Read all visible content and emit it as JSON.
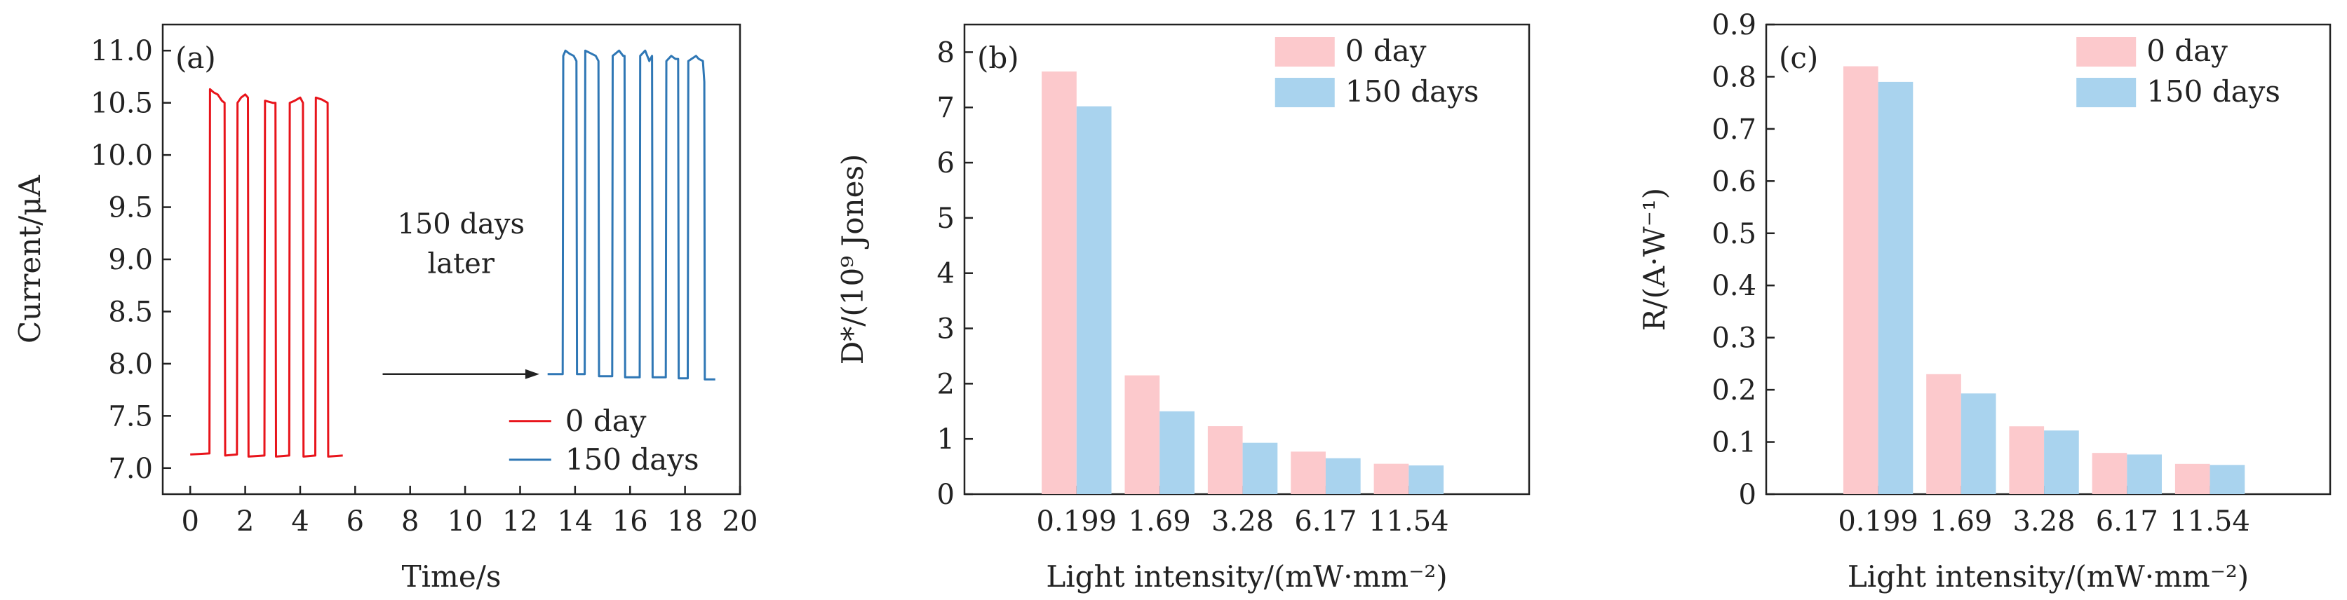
{
  "chart_data": [
    {
      "panel_label": "(a)",
      "type": "line",
      "xlabel": "Time/s",
      "ylabel": "Current/μA",
      "xlim": [
        -1,
        20
      ],
      "ylim": [
        6.75,
        11.25
      ],
      "xticks": [
        "0",
        "2",
        "4",
        "6",
        "8",
        "10",
        "12",
        "14",
        "16",
        "18",
        "20"
      ],
      "yticks": [
        "7.0",
        "7.5",
        "8.0",
        "8.5",
        "9.0",
        "9.5",
        "10.0",
        "10.5",
        "11.0"
      ],
      "annotation": {
        "line1": "150 days",
        "line2": "later",
        "arrow_from_x": 7,
        "arrow_to_x": 12.7,
        "arrow_y": 7.9
      },
      "series": [
        {
          "name": "0 day",
          "color": "#e8141b",
          "x": [
            0,
            0.7,
            0.72,
            0.85,
            1.0,
            1.15,
            1.25,
            1.27,
            1.7,
            1.72,
            1.85,
            2.0,
            2.1,
            2.12,
            2.7,
            2.72,
            3.0,
            3.1,
            3.12,
            3.6,
            3.62,
            3.8,
            4.0,
            4.1,
            4.12,
            4.55,
            4.57,
            4.8,
            5.0,
            5.02,
            5.55
          ],
          "y": [
            7.13,
            7.14,
            10.63,
            10.6,
            10.58,
            10.52,
            10.5,
            7.12,
            7.13,
            10.5,
            10.55,
            10.58,
            10.55,
            7.11,
            7.12,
            10.52,
            10.5,
            10.5,
            7.11,
            7.12,
            10.5,
            10.52,
            10.55,
            10.5,
            7.11,
            7.12,
            10.55,
            10.53,
            10.5,
            7.11,
            7.12
          ]
        },
        {
          "name": "150 days",
          "color": "#2f77b5",
          "x": [
            13.0,
            13.55,
            13.57,
            13.65,
            13.8,
            13.95,
            14.05,
            14.07,
            14.35,
            14.37,
            14.6,
            14.75,
            14.85,
            14.87,
            15.35,
            15.37,
            15.6,
            15.75,
            15.8,
            15.82,
            16.35,
            16.37,
            16.55,
            16.7,
            16.8,
            16.82,
            17.3,
            17.32,
            17.5,
            17.65,
            17.75,
            17.77,
            18.1,
            18.12,
            18.4,
            18.5,
            18.65,
            18.7,
            18.72,
            19.1
          ],
          "y": [
            7.9,
            7.9,
            10.95,
            11.0,
            10.97,
            10.95,
            10.9,
            7.9,
            7.9,
            11.0,
            10.97,
            10.95,
            10.9,
            7.88,
            7.88,
            10.95,
            11.0,
            10.95,
            10.95,
            7.87,
            7.87,
            10.95,
            11.0,
            10.9,
            10.95,
            7.87,
            7.87,
            10.9,
            10.95,
            10.92,
            10.92,
            7.86,
            7.86,
            10.9,
            10.95,
            10.92,
            10.9,
            10.7,
            7.85,
            7.85
          ]
        }
      ],
      "legend_placement": "bottom-right"
    },
    {
      "panel_label": "(b)",
      "type": "bar",
      "xlabel": "Light intensity/(mW·mm⁻²)",
      "ylabel": "D*/(10⁹ Jones)",
      "categories": [
        "0.199",
        "1.69",
        "3.28",
        "6.17",
        "11.54"
      ],
      "ylim": [
        0,
        8.5
      ],
      "yticks": [
        "0",
        "1",
        "2",
        "3",
        "4",
        "5",
        "6",
        "7",
        "8"
      ],
      "series": [
        {
          "name": "0 day",
          "color": "#fcc9cc",
          "values": [
            7.65,
            2.15,
            1.23,
            0.77,
            0.55
          ]
        },
        {
          "name": "150 days",
          "color": "#a9d3ee",
          "values": [
            7.02,
            1.5,
            0.93,
            0.65,
            0.52
          ]
        }
      ],
      "legend_placement": "top-right"
    },
    {
      "panel_label": "(c)",
      "type": "bar",
      "xlabel": "Light intensity/(mW·mm⁻²)",
      "ylabel": "R/(A·W⁻¹)",
      "categories": [
        "0.199",
        "1.69",
        "3.28",
        "6.17",
        "11.54"
      ],
      "ylim": [
        0,
        0.9
      ],
      "yticks": [
        "0",
        "0.1",
        "0.2",
        "0.3",
        "0.4",
        "0.5",
        "0.6",
        "0.7",
        "0.8",
        "0.9"
      ],
      "series": [
        {
          "name": "0 day",
          "color": "#fcc9cc",
          "values": [
            0.82,
            0.23,
            0.13,
            0.079,
            0.058
          ]
        },
        {
          "name": "150 days",
          "color": "#a9d3ee",
          "values": [
            0.79,
            0.193,
            0.122,
            0.076,
            0.056
          ]
        }
      ],
      "legend_placement": "top-right"
    }
  ]
}
